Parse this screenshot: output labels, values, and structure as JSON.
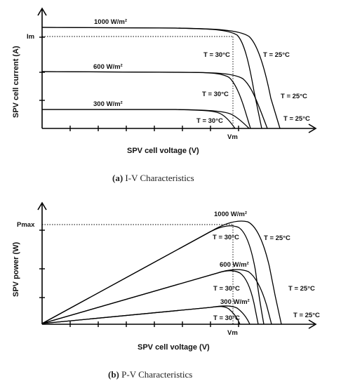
{
  "chart_data": [
    {
      "type": "line",
      "xlabel": "SPV cell voltage (V)",
      "ylabel": "SPV cell current (A)",
      "y_marker_label": "Im",
      "x_marker_label": "Vm",
      "caption_letter": "(a)",
      "caption_text": " I-V Characteristics",
      "irradiance_labels": [
        "1000 W/m²",
        "600 W/m²",
        "300 W/m²"
      ],
      "temp_30_labels": [
        "T = 30°C",
        "T = 30°C",
        "T = 30°C"
      ],
      "temp_25_labels": [
        "T = 25°C",
        "T = 25°C",
        "T = 25°C"
      ],
      "series": [
        {
          "x": [
            0,
            0.45,
            0.75,
            0.83,
            0.88,
            0.91,
            0.94
          ],
          "y": [
            1.0,
            0.99,
            0.97,
            0.88,
            0.62,
            0.3,
            0.0
          ]
        },
        {
          "x": [
            0,
            0.45,
            0.8,
            0.88,
            0.93,
            0.96,
            0.99
          ],
          "y": [
            1.0,
            0.99,
            0.97,
            0.88,
            0.62,
            0.3,
            0.0
          ]
        },
        {
          "x": [
            0,
            0.45,
            0.74,
            0.81,
            0.85,
            0.87,
            0.89
          ],
          "y": [
            0.56,
            0.555,
            0.545,
            0.47,
            0.33,
            0.16,
            0.0
          ]
        },
        {
          "x": [
            0,
            0.45,
            0.79,
            0.86,
            0.9,
            0.93,
            0.95
          ],
          "y": [
            0.56,
            0.555,
            0.545,
            0.47,
            0.33,
            0.16,
            0.0
          ]
        },
        {
          "x": [
            0,
            0.45,
            0.71,
            0.76,
            0.8,
            0.82,
            0.84
          ],
          "y": [
            0.17,
            0.168,
            0.165,
            0.14,
            0.09,
            0.04,
            0.0
          ]
        },
        {
          "x": [
            0,
            0.45,
            0.76,
            0.81,
            0.85,
            0.88,
            0.9
          ],
          "y": [
            0.17,
            0.168,
            0.165,
            0.14,
            0.09,
            0.04,
            0.0
          ]
        }
      ]
    },
    {
      "type": "line",
      "xlabel": "SPV cell voltage (V)",
      "ylabel": "SPV power (W)",
      "y_marker_label": "Pmax",
      "x_marker_label": "Vm",
      "caption_letter": "(b)",
      "caption_text": " P-V Characteristics",
      "irradiance_labels": [
        "1000 W/m²",
        "600 W/m²",
        "300 W/m²"
      ],
      "temp_30_labels": [
        "T = 30°C",
        "T = 30°C",
        "T = 30°C"
      ],
      "temp_25_labels": [
        "T = 25°C",
        "T = 25°C",
        "T = 25°C"
      ],
      "series": [
        {
          "x": [
            0,
            0.7,
            0.76,
            0.81,
            0.86,
            0.89,
            0.91
          ],
          "y": [
            0,
            0.92,
            0.98,
            0.96,
            0.72,
            0.32,
            0.0
          ]
        },
        {
          "x": [
            0,
            0.7,
            0.8,
            0.86,
            0.91,
            0.94,
            0.96
          ],
          "y": [
            0,
            0.92,
            1.0,
            0.97,
            0.73,
            0.32,
            0.0
          ]
        },
        {
          "x": [
            0,
            0.72,
            0.8,
            0.85,
            0.88,
            0.9
          ],
          "y": [
            0,
            0.5,
            0.53,
            0.44,
            0.2,
            0.0
          ]
        },
        {
          "x": [
            0,
            0.72,
            0.84,
            0.89,
            0.92,
            0.94
          ],
          "y": [
            0,
            0.5,
            0.55,
            0.45,
            0.2,
            0.0
          ]
        },
        {
          "x": [
            0,
            0.7,
            0.76,
            0.8,
            0.83
          ],
          "y": [
            0,
            0.16,
            0.16,
            0.09,
            0.0
          ]
        },
        {
          "x": [
            0,
            0.73,
            0.8,
            0.84,
            0.87
          ],
          "y": [
            0,
            0.16,
            0.17,
            0.09,
            0.0
          ]
        }
      ]
    }
  ]
}
